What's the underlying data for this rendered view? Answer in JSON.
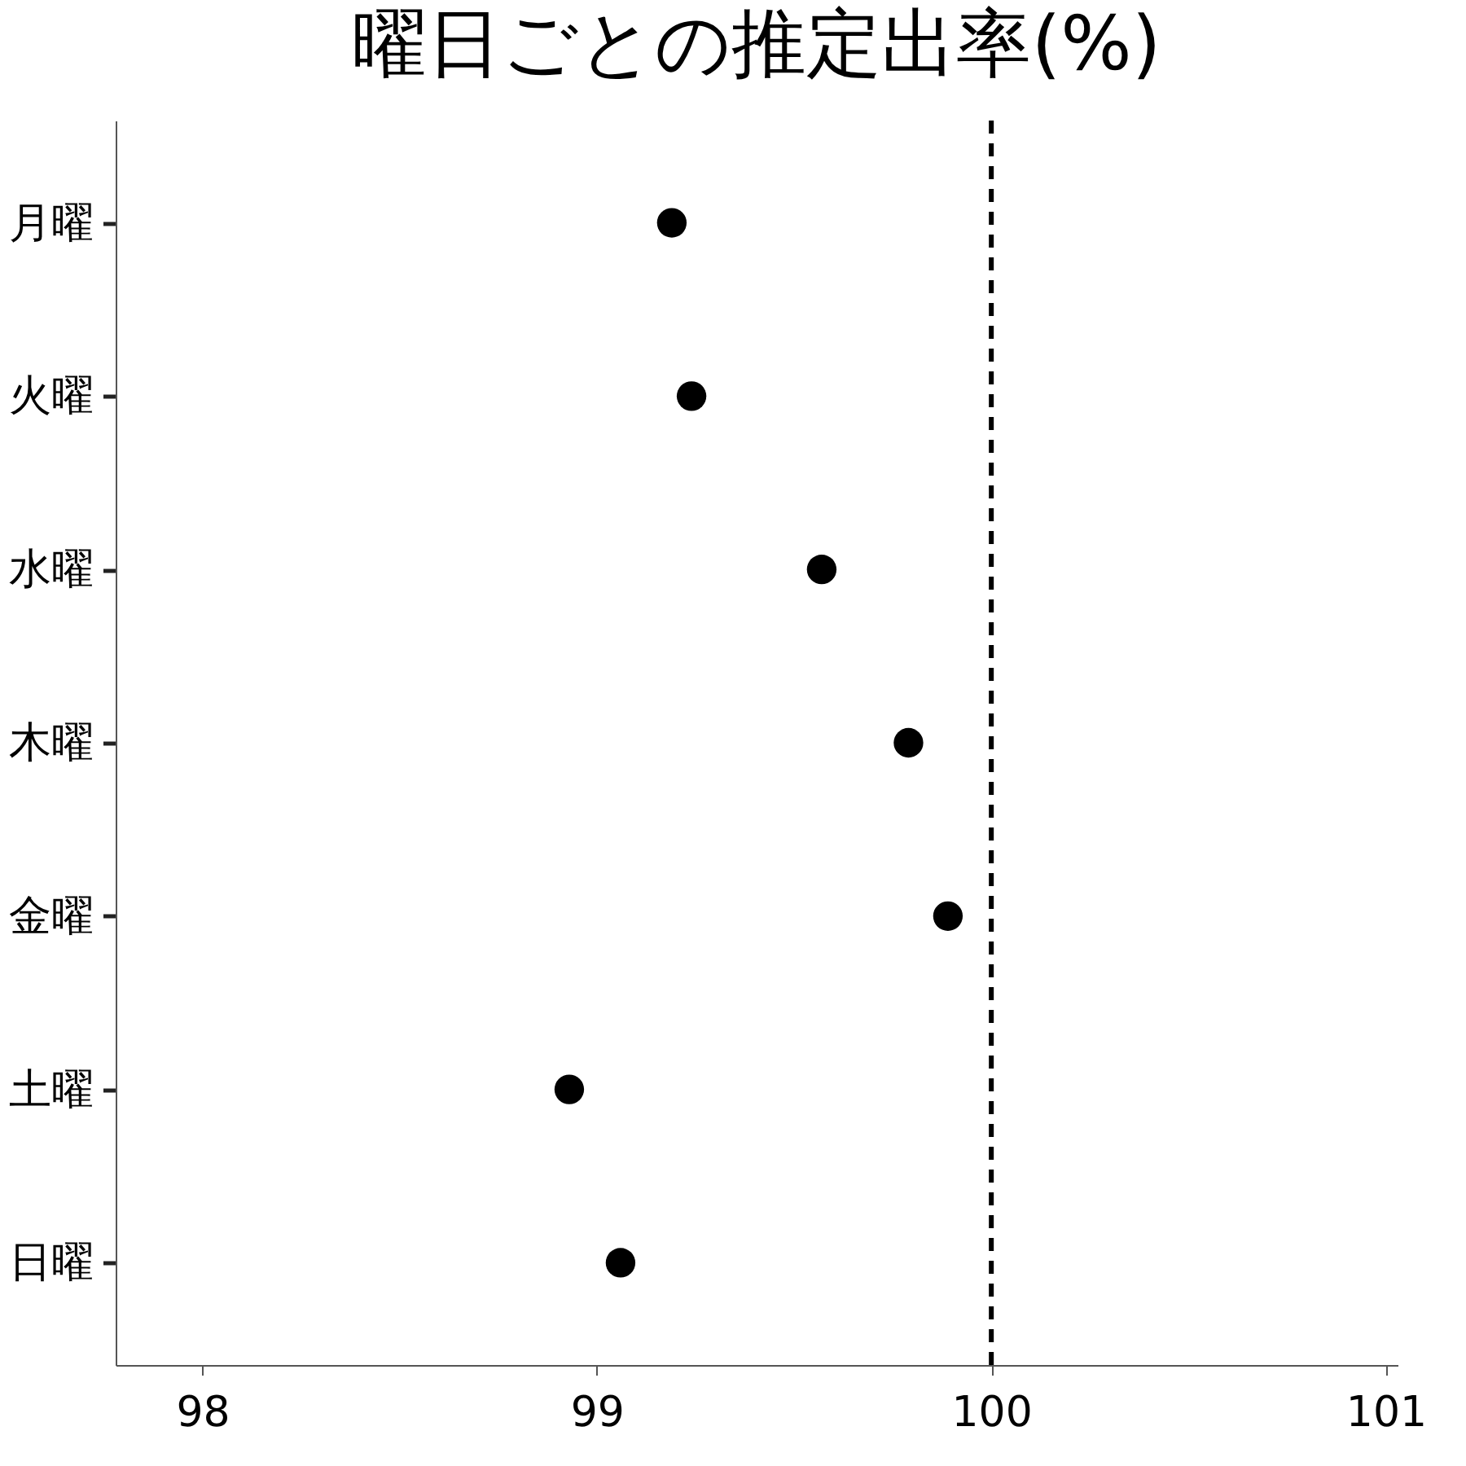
{
  "chart_data": {
    "type": "scatter",
    "title": "曜日ごとの推定出率(%)",
    "orientation": "horizontal",
    "categories": [
      "月曜",
      "火曜",
      "水曜",
      "木曜",
      "金曜",
      "土曜",
      "日曜"
    ],
    "series": [
      {
        "color": "#000000",
        "values": [
          99.19,
          99.24,
          99.57,
          99.79,
          99.89,
          98.93,
          99.06
        ]
      }
    ],
    "xlim": [
      97.78,
      101.03
    ],
    "xticks": [
      98,
      99,
      100,
      101
    ],
    "ref_lines": [
      {
        "axis": "x",
        "value": 100,
        "color": "#000000",
        "line_style": "dashed"
      }
    ],
    "marker": "circle",
    "grid": false
  }
}
